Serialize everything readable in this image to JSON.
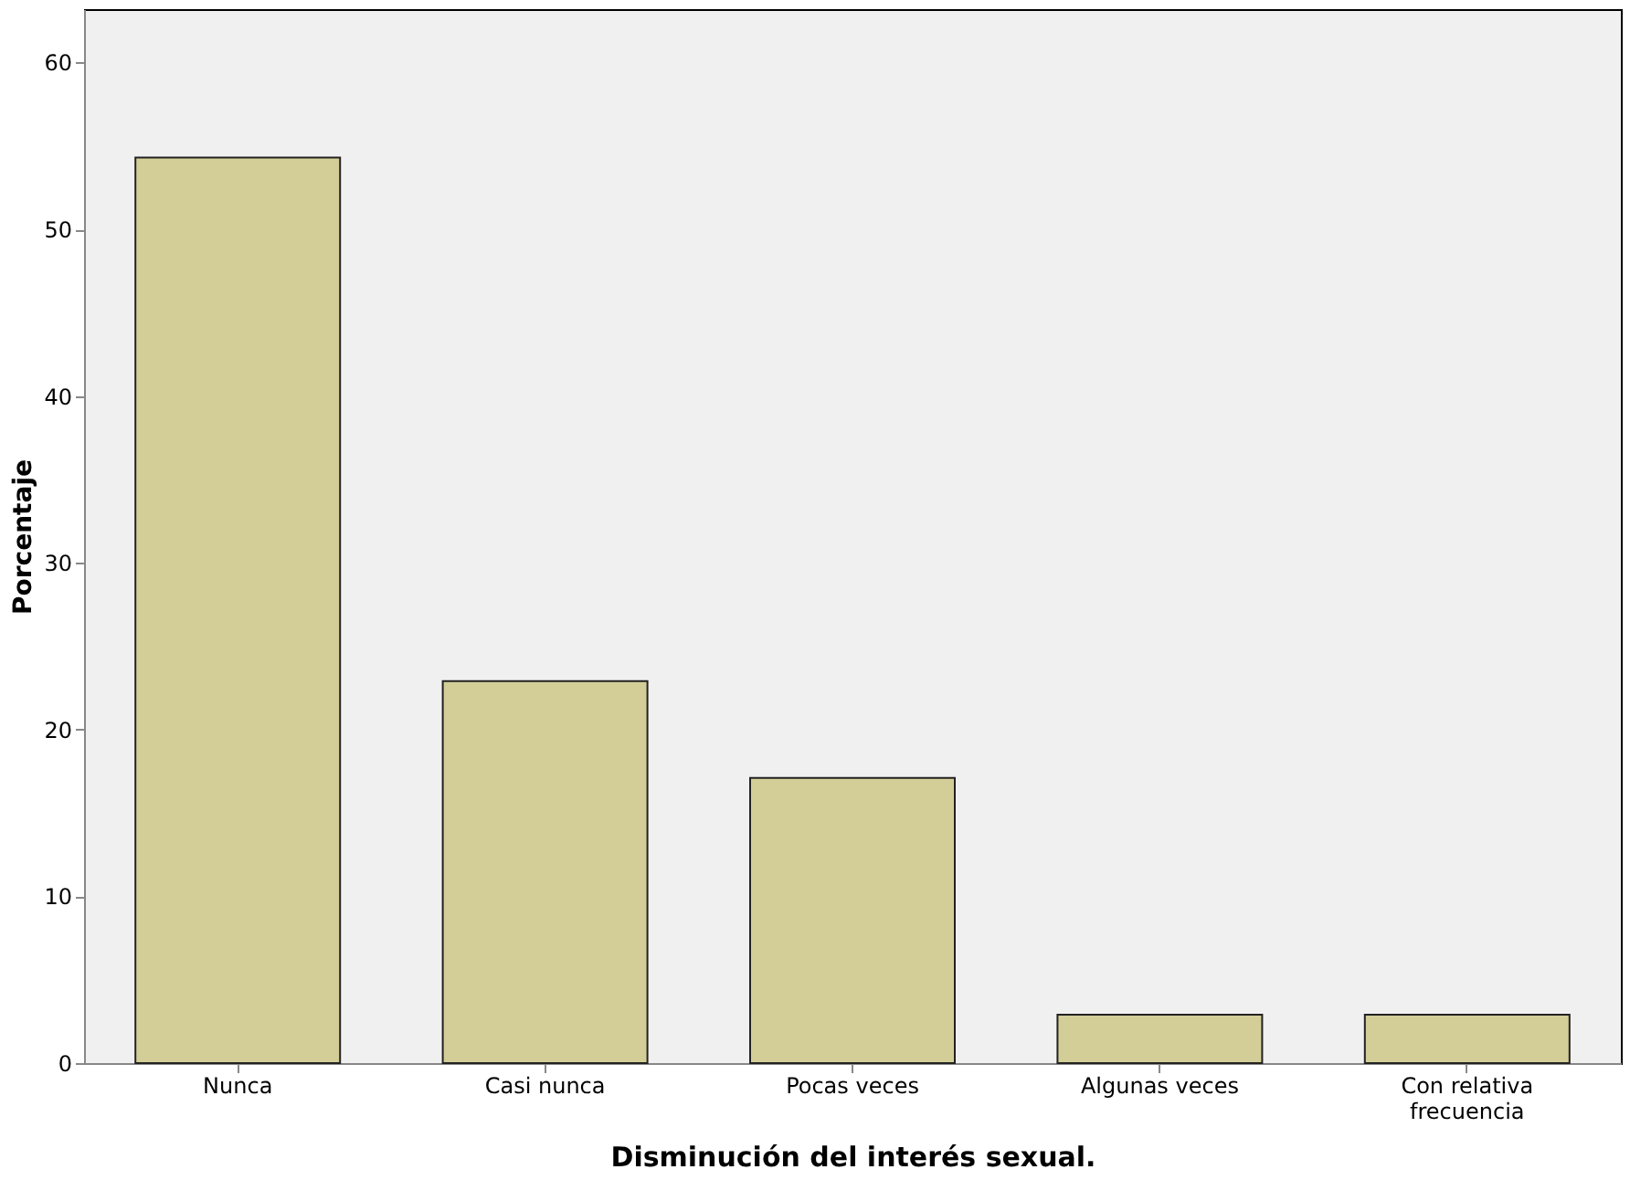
{
  "chart_data": {
    "type": "bar",
    "xlabel": "Disminución del interés sexual.",
    "ylabel": "Porcentaje",
    "categories": [
      "Nunca",
      "Casi nunca",
      "Pocas veces",
      "Algunas veces",
      "Con relativa\nfrecuencia"
    ],
    "values": [
      54.3,
      22.9,
      17.1,
      2.9,
      2.9
    ],
    "color": "#d3ce97",
    "ylim": [
      0,
      63.2
    ],
    "yticks": [
      0,
      10,
      20,
      30,
      40,
      50,
      60
    ],
    "grid": false
  }
}
